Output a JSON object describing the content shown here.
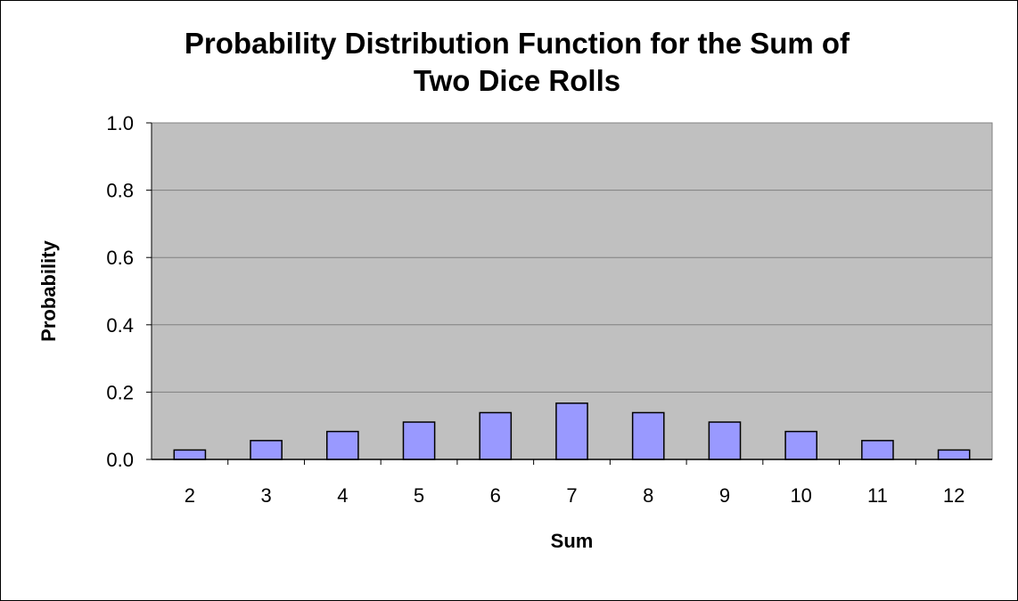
{
  "chart_data": {
    "type": "bar",
    "title_line1": "Probability Distribution Function for the Sum of",
    "title_line2": "Two Dice Rolls",
    "xlabel": "Sum",
    "ylabel": "Probability",
    "categories": [
      "2",
      "3",
      "4",
      "5",
      "6",
      "7",
      "8",
      "9",
      "10",
      "11",
      "12"
    ],
    "values": [
      0.028,
      0.056,
      0.083,
      0.111,
      0.139,
      0.167,
      0.139,
      0.111,
      0.083,
      0.056,
      0.028
    ],
    "ylim": [
      0,
      1.0
    ],
    "yticks": [
      "0.0",
      "0.2",
      "0.4",
      "0.6",
      "0.8",
      "1.0"
    ],
    "grid": true,
    "legend": "none",
    "colors": {
      "bar": "#9999ff",
      "plot_background": "#c0c0c0",
      "gridline": "#808080"
    }
  }
}
